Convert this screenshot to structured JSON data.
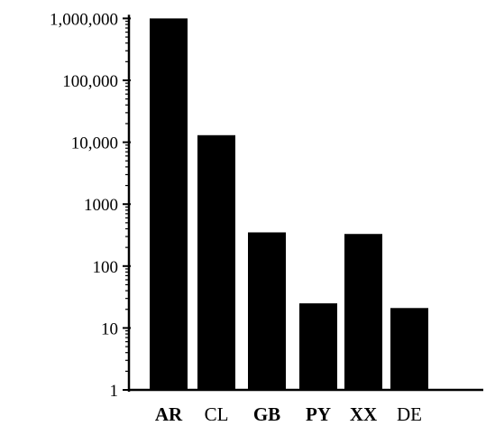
{
  "chart_data": {
    "type": "bar",
    "scale": "log",
    "title": "",
    "xlabel": "",
    "ylabel": "",
    "categories": [
      "AR",
      "CL",
      "GB",
      "PY",
      "XX",
      "DE"
    ],
    "category_bold": [
      true,
      false,
      true,
      true,
      true,
      false
    ],
    "values": [
      1000000,
      13000,
      350,
      25,
      330,
      21
    ],
    "ylim": [
      1,
      1000000
    ],
    "y_ticks": [
      {
        "value": 1,
        "label": "1"
      },
      {
        "value": 10,
        "label": "10"
      },
      {
        "value": 100,
        "label": "100"
      },
      {
        "value": 1000,
        "label": "1000"
      },
      {
        "value": 10000,
        "label": "10,000"
      },
      {
        "value": 100000,
        "label": "100,000"
      },
      {
        "value": 1000000,
        "label": "1,000,000"
      }
    ],
    "grid": false,
    "legend": "none",
    "colors": {
      "bar": "#000000",
      "axis": "#000000",
      "background": "#ffffff"
    }
  }
}
